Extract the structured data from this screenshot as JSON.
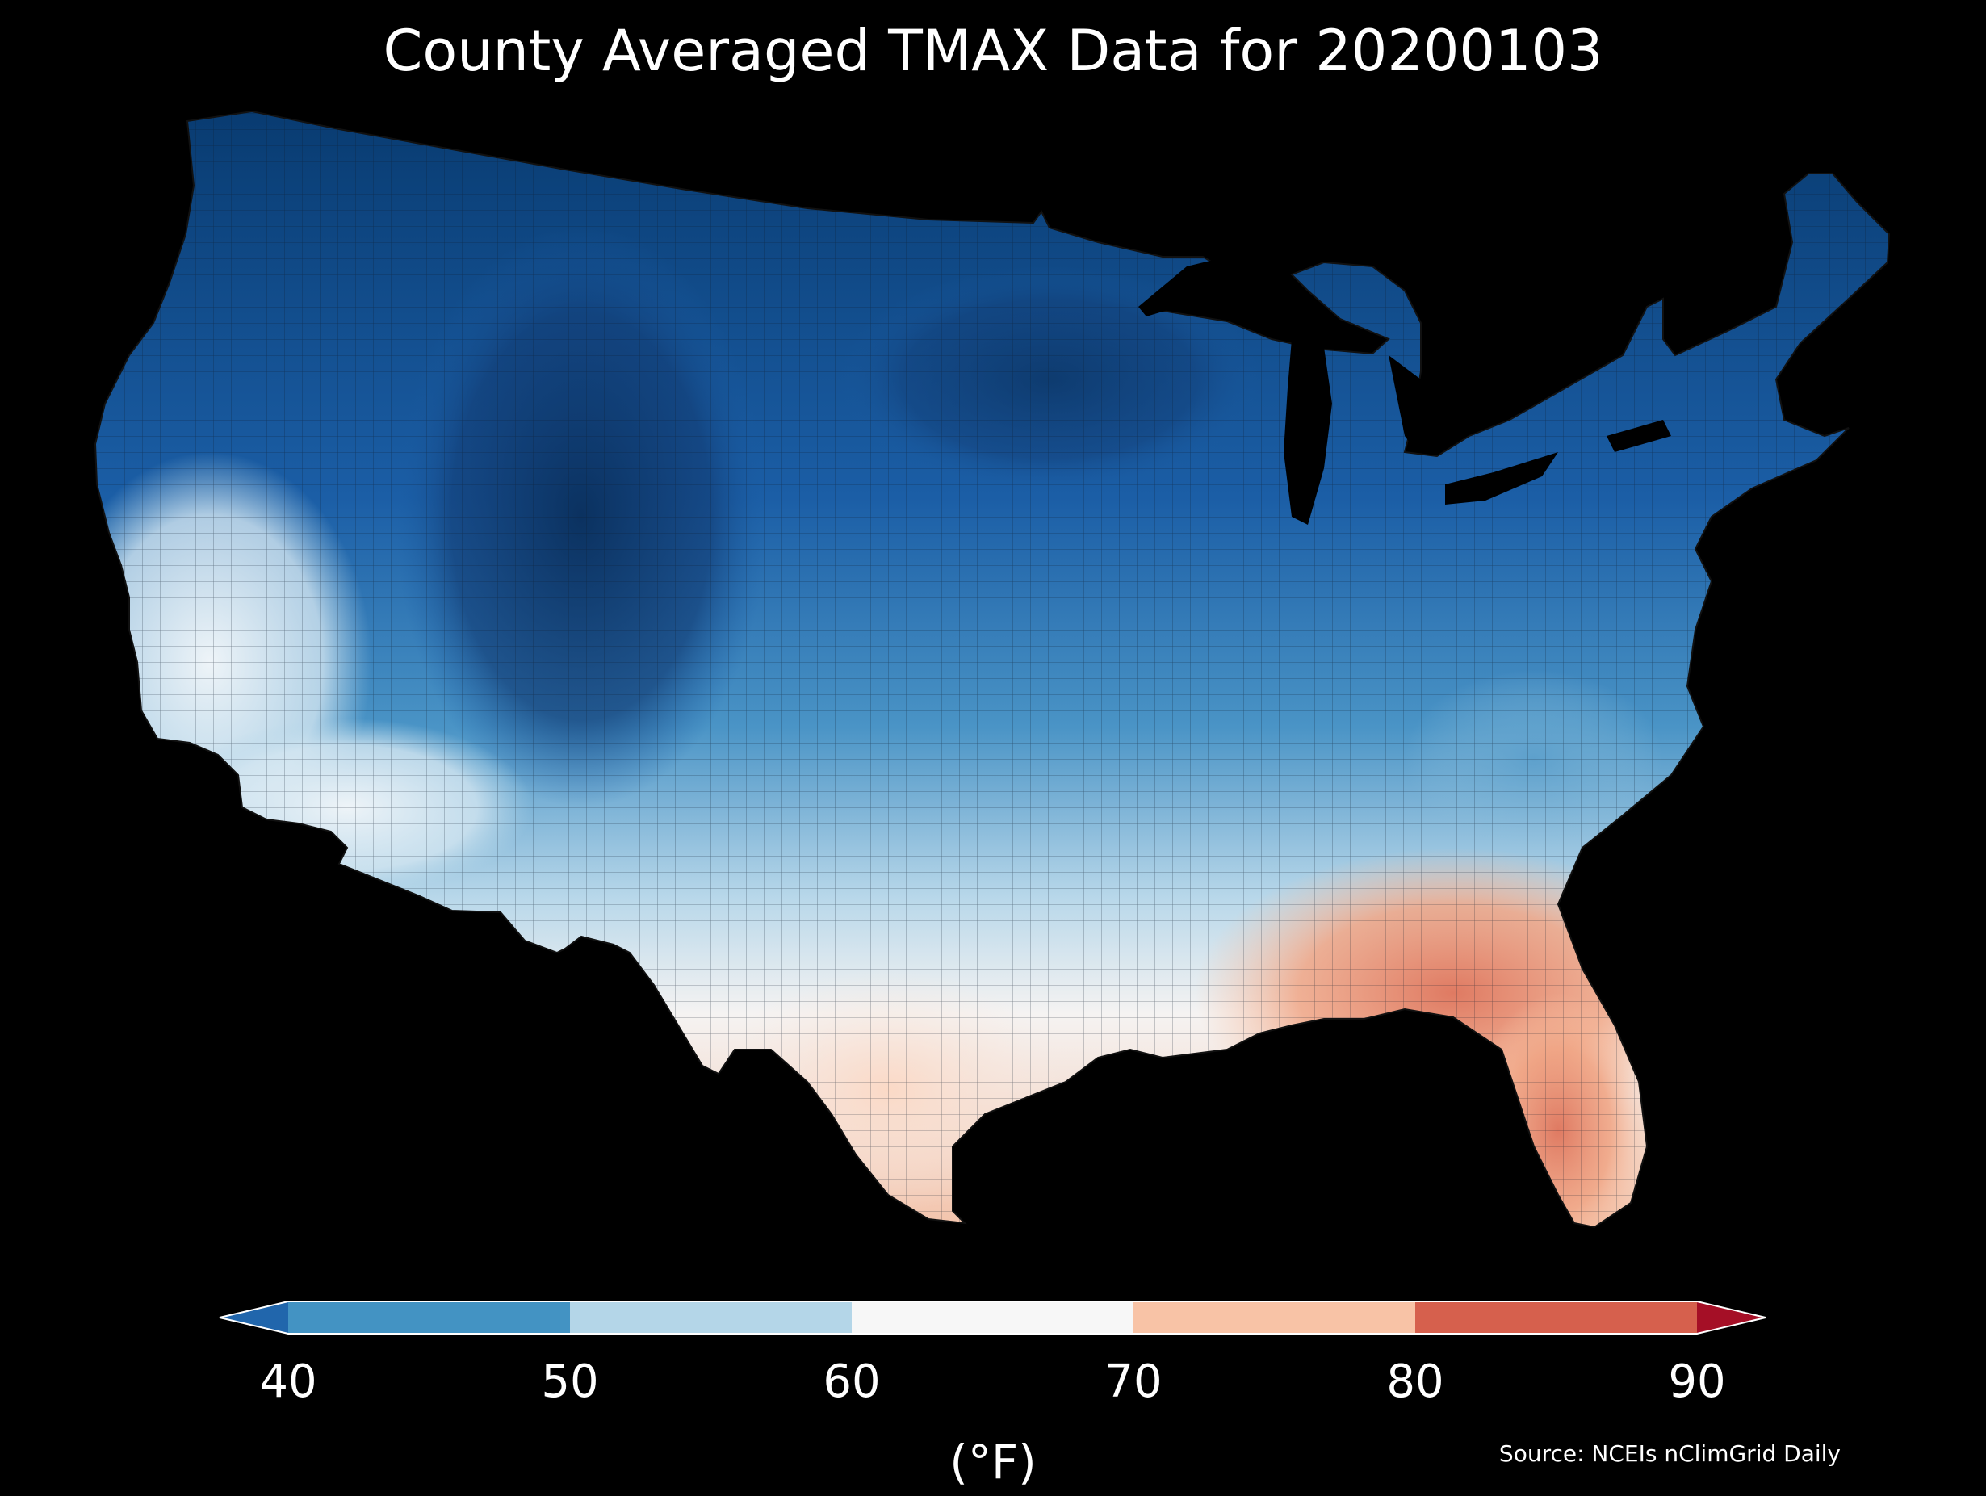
{
  "title": "County Averaged TMAX Data for 20200103",
  "colorbar": {
    "ticks": [
      "40",
      "50",
      "60",
      "70",
      "80",
      "90"
    ],
    "unit": "(°F)",
    "bins": [
      {
        "from": null,
        "to": 40,
        "color": "#2166ac"
      },
      {
        "from": 40,
        "to": 50,
        "color": "#4393c3"
      },
      {
        "from": 50,
        "to": 60,
        "color": "#b4d6e8"
      },
      {
        "from": 60,
        "to": 70,
        "color": "#f7f7f7"
      },
      {
        "from": 70,
        "to": 80,
        "color": "#f8c3a6"
      },
      {
        "from": 80,
        "to": 90,
        "color": "#d6604d"
      },
      {
        "from": 90,
        "to": null,
        "color": "#a50f26"
      }
    ]
  },
  "source": "Source: NCEIs nClimGrid Daily",
  "map": {
    "region": "contiguous-us",
    "background_color": "#000000",
    "border_color": "#1a1a1a"
  }
}
